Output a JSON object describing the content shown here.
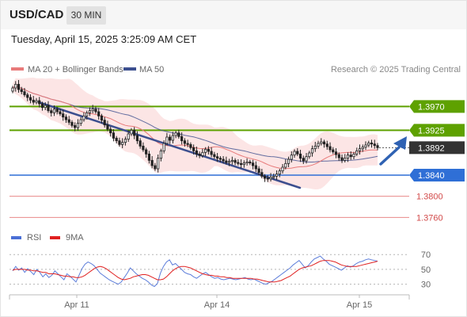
{
  "header": {
    "symbol": "USD/CAD",
    "timeframe": "30 MIN",
    "datetime": "Tuesday, April 15, 2025 3:25:09 AM CET"
  },
  "colors": {
    "ma20": "#e87a7a",
    "ma50": "#3c4f8f",
    "bollinger_fill": "#fbdcdc",
    "resistance": "#5ea100",
    "support": "#2f6fd6",
    "minor_support": "#e88a8a",
    "current_price": "#333333",
    "rsi": "#4a6fd6",
    "rsi_ma": "#e02020",
    "trendline": "#3c4f8f",
    "forecast_arrow": "#2f62b3"
  },
  "chart_data": [
    {
      "type": "candlestick",
      "legend": [
        {
          "label": "MA 20 + Bollinger Bands",
          "color": "#e87a7a"
        },
        {
          "label": "MA 50",
          "color": "#3c4f8f"
        }
      ],
      "legend_placement": "top-left",
      "copyright": "Research © 2025 Trading Central",
      "x_ticks": [
        "Apr 11",
        "Apr 14",
        "Apr 15"
      ],
      "ylim": [
        1.3735,
        1.402
      ],
      "close": [
        1.4005,
        1.4012,
        1.4002,
        1.3998,
        1.3992,
        1.3987,
        1.3982,
        1.3978,
        1.3981,
        1.3975,
        1.3968,
        1.3972,
        1.3962,
        1.3958,
        1.3965,
        1.396,
        1.3956,
        1.395,
        1.3945,
        1.394,
        1.3934,
        1.393,
        1.3938,
        1.3945,
        1.3952,
        1.3958,
        1.3962,
        1.3965,
        1.396,
        1.3952,
        1.3944,
        1.3935,
        1.3927,
        1.392,
        1.391,
        1.3905,
        1.3898,
        1.3902,
        1.3908,
        1.3918,
        1.3925,
        1.3915,
        1.3905,
        1.3895,
        1.3888,
        1.388,
        1.3868,
        1.3858,
        1.3852,
        1.3872,
        1.3886,
        1.39,
        1.3912,
        1.3906,
        1.3915,
        1.392,
        1.3913,
        1.3905,
        1.39,
        1.3898,
        1.3892,
        1.3886,
        1.388,
        1.3877,
        1.3883,
        1.3889,
        1.3885,
        1.3879,
        1.3875,
        1.3872,
        1.387,
        1.3867,
        1.3864,
        1.3866,
        1.3868,
        1.3864,
        1.3862,
        1.386,
        1.3863,
        1.3865,
        1.3863,
        1.3858,
        1.3852,
        1.3845,
        1.3838,
        1.3834,
        1.3833,
        1.3836,
        1.3838,
        1.3842,
        1.3848,
        1.3855,
        1.3862,
        1.387,
        1.3878,
        1.3885,
        1.388,
        1.3872,
        1.3867,
        1.3875,
        1.3882,
        1.389,
        1.3895,
        1.39,
        1.3903,
        1.3899,
        1.3894,
        1.3888,
        1.3884,
        1.3879,
        1.3873,
        1.3868,
        1.3872,
        1.3878,
        1.3875,
        1.388,
        1.3886,
        1.389,
        1.3893,
        1.3897,
        1.3901,
        1.3899,
        1.3896,
        1.3892
      ],
      "levels": [
        {
          "value": 1.397,
          "label": "1.3970",
          "kind": "resistance"
        },
        {
          "value": 1.3925,
          "label": "1.3925",
          "kind": "resistance"
        },
        {
          "value": 1.3892,
          "label": "1.3892",
          "kind": "current"
        },
        {
          "value": 1.384,
          "label": "1.3840",
          "kind": "support"
        },
        {
          "value": 1.38,
          "label": "1.3800",
          "kind": "minor_support"
        },
        {
          "value": 1.376,
          "label": "1.3760",
          "kind": "minor_support"
        }
      ]
    },
    {
      "type": "line",
      "legend": [
        {
          "label": "RSI",
          "color": "#4a6fd6"
        },
        {
          "label": "9MA",
          "color": "#e02020"
        }
      ],
      "legend_placement": "top-left",
      "y_ticks": [
        "70",
        "50",
        "30"
      ],
      "ylim": [
        20,
        82
      ],
      "series": [
        {
          "name": "RSI",
          "values": [
            48,
            54,
            49,
            52,
            46,
            51,
            47,
            43,
            50,
            46,
            40,
            44,
            39,
            42,
            48,
            44,
            40,
            36,
            44,
            41,
            37,
            33,
            42,
            51,
            57,
            60,
            58,
            55,
            50,
            45,
            42,
            39,
            36,
            34,
            32,
            30,
            33,
            39,
            45,
            52,
            48,
            44,
            41,
            38,
            36,
            33,
            29,
            27,
            31,
            45,
            54,
            60,
            63,
            56,
            58,
            54,
            50,
            46,
            44,
            43,
            40,
            38,
            41,
            44,
            46,
            43,
            40,
            38,
            39,
            37,
            36,
            37,
            38,
            37,
            36,
            37,
            38,
            39,
            37,
            36,
            37,
            35,
            33,
            31,
            30,
            32,
            34,
            37,
            40,
            43,
            46,
            49,
            52,
            56,
            59,
            62,
            57,
            52,
            55,
            60,
            64,
            66,
            68,
            64,
            61,
            57,
            55,
            53,
            51,
            49,
            52,
            55,
            53,
            55,
            58,
            60,
            61,
            63,
            64,
            63,
            62,
            61
          ]
        },
        {
          "name": "9MA",
          "values": [
            49,
            50,
            50,
            50,
            50,
            49,
            49,
            48,
            48,
            47,
            46,
            46,
            44,
            44,
            44,
            43,
            42,
            41,
            41,
            40,
            40,
            39,
            39,
            40,
            42,
            45,
            48,
            51,
            53,
            54,
            53,
            51,
            48,
            45,
            42,
            39,
            37,
            36,
            37,
            38,
            40,
            41,
            42,
            43,
            43,
            42,
            40,
            38,
            36,
            36,
            37,
            40,
            44,
            48,
            51,
            53,
            54,
            54,
            53,
            52,
            50,
            48,
            46,
            44,
            43,
            42,
            42,
            41,
            41,
            40,
            40,
            39,
            39,
            38,
            38,
            38,
            38,
            38,
            38,
            38,
            37,
            37,
            36,
            35,
            34,
            33,
            33,
            33,
            34,
            35,
            37,
            39,
            41,
            44,
            47,
            50,
            52,
            53,
            54,
            55,
            57,
            59,
            61,
            62,
            62,
            62,
            61,
            60,
            58,
            56,
            55,
            54,
            54,
            54,
            54,
            55,
            56,
            57,
            58,
            59,
            60,
            61
          ]
        }
      ]
    }
  ]
}
